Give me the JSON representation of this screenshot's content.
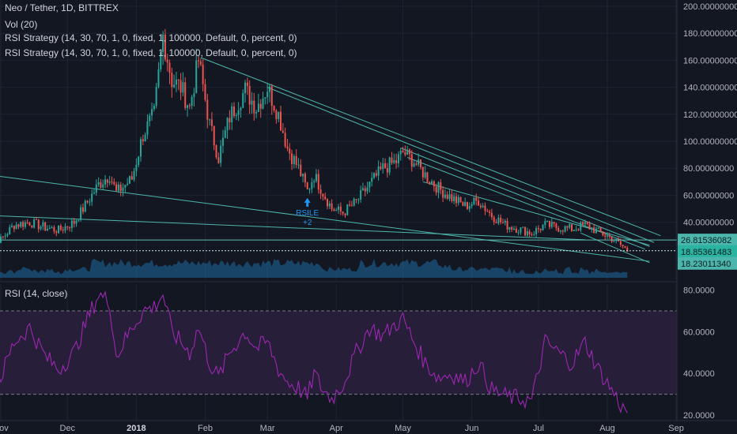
{
  "header": {
    "symbol": "Neo / Tether, 1D, BITTREX",
    "vol": "Vol (20)",
    "strategy1": "RSI Strategy (14, 30, 70, 1, 0, fixed, 1, 100000, Default, 0, percent, 0)",
    "strategy2": "RSI Strategy (14, 30, 70, 1, 0, fixed, 1, 100000, Default, 0, percent, 0)"
  },
  "rsi_title": "RSI (14, close)",
  "signal": {
    "label": "RSILE",
    "sub": "+2"
  },
  "colors": {
    "background": "#131722",
    "up": "#26a69a",
    "down": "#ef5350",
    "trendline": "#4db6ac",
    "volume": "#1e6aa3",
    "rsi_line": "#9c27b0",
    "rsi_band": "#2a1f3d",
    "price_tag": "#4db6ac"
  },
  "chart_data": [
    {
      "type": "candlestick",
      "symbol": "Neo / Tether",
      "interval": "1D",
      "exchange": "BITTREX",
      "ylim": [
        0,
        200
      ],
      "yticks": [
        "200.00000000",
        "180.00000000",
        "160.00000000",
        "140.00000000",
        "120.00000000",
        "100.00000000",
        "80.00000000",
        "60.00000000",
        "40.00000000"
      ],
      "price_tags": [
        "26.81536082",
        "18.85361483",
        "18.23011340"
      ],
      "xticks": [
        "Nov",
        "Dec",
        "2018",
        "Feb",
        "Mar",
        "Apr",
        "May",
        "Jun",
        "Jul",
        "Aug",
        "Sep",
        "O"
      ],
      "close_path": [
        {
          "x": "2017-10-25",
          "y": 30
        },
        {
          "x": "2017-11-01",
          "y": 27
        },
        {
          "x": "2017-11-07",
          "y": 38
        },
        {
          "x": "2017-11-14",
          "y": 40
        },
        {
          "x": "2017-11-21",
          "y": 36
        },
        {
          "x": "2017-11-27",
          "y": 34
        },
        {
          "x": "2017-12-04",
          "y": 40
        },
        {
          "x": "2017-12-10",
          "y": 55
        },
        {
          "x": "2017-12-15",
          "y": 68
        },
        {
          "x": "2017-12-20",
          "y": 75
        },
        {
          "x": "2017-12-23",
          "y": 62
        },
        {
          "x": "2017-12-30",
          "y": 72
        },
        {
          "x": "2018-01-04",
          "y": 105
        },
        {
          "x": "2018-01-09",
          "y": 120
        },
        {
          "x": "2018-01-13",
          "y": 178
        },
        {
          "x": "2018-01-17",
          "y": 145
        },
        {
          "x": "2018-01-21",
          "y": 140
        },
        {
          "x": "2018-01-25",
          "y": 125
        },
        {
          "x": "2018-01-29",
          "y": 160
        },
        {
          "x": "2018-02-03",
          "y": 112
        },
        {
          "x": "2018-02-07",
          "y": 88
        },
        {
          "x": "2018-02-12",
          "y": 118
        },
        {
          "x": "2018-02-19",
          "y": 138
        },
        {
          "x": "2018-02-24",
          "y": 125
        },
        {
          "x": "2018-03-01",
          "y": 140
        },
        {
          "x": "2018-03-06",
          "y": 120
        },
        {
          "x": "2018-03-10",
          "y": 95
        },
        {
          "x": "2018-03-15",
          "y": 80
        },
        {
          "x": "2018-03-19",
          "y": 63
        },
        {
          "x": "2018-03-22",
          "y": 75
        },
        {
          "x": "2018-03-26",
          "y": 62
        },
        {
          "x": "2018-03-30",
          "y": 50
        },
        {
          "x": "2018-04-04",
          "y": 47
        },
        {
          "x": "2018-04-10",
          "y": 55
        },
        {
          "x": "2018-04-16",
          "y": 68
        },
        {
          "x": "2018-04-22",
          "y": 80
        },
        {
          "x": "2018-04-28",
          "y": 85
        },
        {
          "x": "2018-05-01",
          "y": 92
        },
        {
          "x": "2018-05-06",
          "y": 85
        },
        {
          "x": "2018-05-11",
          "y": 75
        },
        {
          "x": "2018-05-17",
          "y": 65
        },
        {
          "x": "2018-05-23",
          "y": 58
        },
        {
          "x": "2018-05-29",
          "y": 52
        },
        {
          "x": "2018-06-04",
          "y": 56
        },
        {
          "x": "2018-06-10",
          "y": 45
        },
        {
          "x": "2018-06-16",
          "y": 38
        },
        {
          "x": "2018-06-22",
          "y": 35
        },
        {
          "x": "2018-06-28",
          "y": 32
        },
        {
          "x": "2018-07-04",
          "y": 38
        },
        {
          "x": "2018-07-10",
          "y": 36
        },
        {
          "x": "2018-07-16",
          "y": 35
        },
        {
          "x": "2018-07-22",
          "y": 38
        },
        {
          "x": "2018-07-28",
          "y": 33
        },
        {
          "x": "2018-08-03",
          "y": 28
        },
        {
          "x": "2018-08-08",
          "y": 22
        },
        {
          "x": "2018-08-10",
          "y": 18.85
        }
      ]
    },
    {
      "type": "line",
      "title": "RSI (14, close)",
      "ylim": [
        18,
        83
      ],
      "yticks": [
        "80.0000",
        "60.0000",
        "40.0000",
        "20.0000"
      ],
      "bands": [
        30,
        70
      ],
      "xticks": [
        "Nov",
        "Dec",
        "2018",
        "Feb",
        "Mar",
        "Apr",
        "May",
        "Jun",
        "Jul",
        "Aug",
        "Sep",
        "O"
      ],
      "rsi_path": [
        {
          "x": "2017-10-25",
          "y": 45
        },
        {
          "x": "2017-11-01",
          "y": 38
        },
        {
          "x": "2017-11-07",
          "y": 55
        },
        {
          "x": "2017-11-14",
          "y": 62
        },
        {
          "x": "2017-11-21",
          "y": 48
        },
        {
          "x": "2017-11-27",
          "y": 42
        },
        {
          "x": "2017-12-04",
          "y": 50
        },
        {
          "x": "2017-12-10",
          "y": 66
        },
        {
          "x": "2017-12-15",
          "y": 78
        },
        {
          "x": "2017-12-20",
          "y": 74
        },
        {
          "x": "2017-12-23",
          "y": 48
        },
        {
          "x": "2017-12-30",
          "y": 62
        },
        {
          "x": "2018-01-04",
          "y": 70
        },
        {
          "x": "2018-01-09",
          "y": 72
        },
        {
          "x": "2018-01-13",
          "y": 78
        },
        {
          "x": "2018-01-17",
          "y": 60
        },
        {
          "x": "2018-01-21",
          "y": 55
        },
        {
          "x": "2018-01-25",
          "y": 50
        },
        {
          "x": "2018-01-29",
          "y": 62
        },
        {
          "x": "2018-02-03",
          "y": 45
        },
        {
          "x": "2018-02-07",
          "y": 38
        },
        {
          "x": "2018-02-12",
          "y": 50
        },
        {
          "x": "2018-02-19",
          "y": 60
        },
        {
          "x": "2018-02-24",
          "y": 52
        },
        {
          "x": "2018-03-01",
          "y": 55
        },
        {
          "x": "2018-03-06",
          "y": 42
        },
        {
          "x": "2018-03-10",
          "y": 36
        },
        {
          "x": "2018-03-15",
          "y": 33
        },
        {
          "x": "2018-03-19",
          "y": 28
        },
        {
          "x": "2018-03-22",
          "y": 40
        },
        {
          "x": "2018-03-26",
          "y": 32
        },
        {
          "x": "2018-03-30",
          "y": 28
        },
        {
          "x": "2018-04-04",
          "y": 35
        },
        {
          "x": "2018-04-10",
          "y": 50
        },
        {
          "x": "2018-04-16",
          "y": 62
        },
        {
          "x": "2018-04-22",
          "y": 58
        },
        {
          "x": "2018-04-28",
          "y": 64
        },
        {
          "x": "2018-05-01",
          "y": 66
        },
        {
          "x": "2018-05-06",
          "y": 55
        },
        {
          "x": "2018-05-11",
          "y": 45
        },
        {
          "x": "2018-05-17",
          "y": 38
        },
        {
          "x": "2018-05-23",
          "y": 40
        },
        {
          "x": "2018-05-29",
          "y": 36
        },
        {
          "x": "2018-06-04",
          "y": 45
        },
        {
          "x": "2018-06-10",
          "y": 32
        },
        {
          "x": "2018-06-16",
          "y": 29
        },
        {
          "x": "2018-06-22",
          "y": 28
        },
        {
          "x": "2018-06-28",
          "y": 27
        },
        {
          "x": "2018-07-04",
          "y": 55
        },
        {
          "x": "2018-07-10",
          "y": 50
        },
        {
          "x": "2018-07-16",
          "y": 45
        },
        {
          "x": "2018-07-22",
          "y": 55
        },
        {
          "x": "2018-07-28",
          "y": 42
        },
        {
          "x": "2018-08-03",
          "y": 32
        },
        {
          "x": "2018-08-08",
          "y": 23
        },
        {
          "x": "2018-08-10",
          "y": 22
        }
      ]
    }
  ]
}
